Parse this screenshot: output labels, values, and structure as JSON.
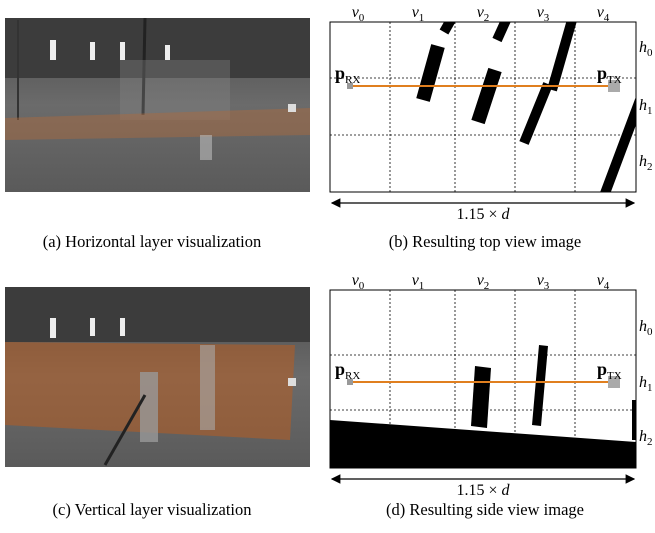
{
  "panels": [
    {
      "caption": "(a) Horizontal layer visualization"
    },
    {
      "caption": "(b) Resulting top view image",
      "columns": [
        {
          "base": "v",
          "sub": "0"
        },
        {
          "base": "v",
          "sub": "1"
        },
        {
          "base": "v",
          "sub": "2"
        },
        {
          "base": "v",
          "sub": "3"
        },
        {
          "base": "v",
          "sub": "4"
        }
      ],
      "rows": [
        {
          "base": "h",
          "sub": "0"
        },
        {
          "base": "h",
          "sub": "1"
        },
        {
          "base": "h",
          "sub": "2"
        }
      ],
      "rx": {
        "base": "p",
        "sub": "RX"
      },
      "tx": {
        "base": "p",
        "sub": "TX"
      },
      "width_label": {
        "text": "1.15 ×",
        "var": "d"
      }
    },
    {
      "caption": "(c) Vertical layer visualization"
    },
    {
      "caption": "(d) Resulting side view image",
      "columns": [
        {
          "base": "v",
          "sub": "0"
        },
        {
          "base": "v",
          "sub": "1"
        },
        {
          "base": "v",
          "sub": "2"
        },
        {
          "base": "v",
          "sub": "3"
        },
        {
          "base": "v",
          "sub": "4"
        }
      ],
      "rows": [
        {
          "base": "h",
          "sub": "0"
        },
        {
          "base": "h",
          "sub": "1"
        },
        {
          "base": "h",
          "sub": "2"
        }
      ],
      "rx": {
        "base": "p",
        "sub": "RX"
      },
      "tx": {
        "base": "p",
        "sub": "TX"
      },
      "width_label": {
        "text": "1.15 ×",
        "var": "d"
      }
    }
  ]
}
